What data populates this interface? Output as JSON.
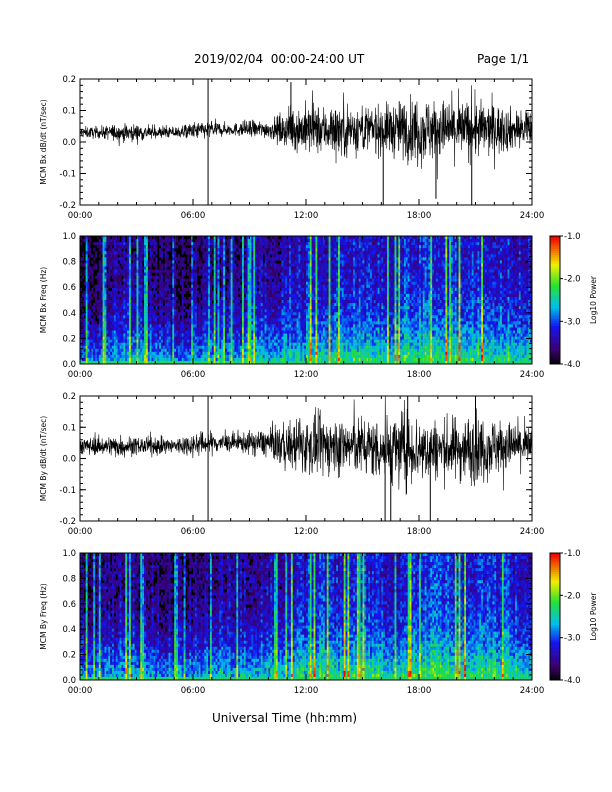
{
  "header": {
    "title": "2019/02/04  00:00-24:00 UT",
    "page": "Page 1/1"
  },
  "footer": {
    "xlabel": "Universal Time (hh:mm)"
  },
  "chart_data": [
    {
      "type": "line",
      "ylabel": "MCM Bx dB/dt (nT/sec)",
      "xlim": [
        0,
        24
      ],
      "ylim": [
        -0.2,
        0.2
      ],
      "xticks": [
        "00:00",
        "06:00",
        "12:00",
        "18:00",
        "24:00"
      ],
      "yticks": [
        "0.2",
        "0.1",
        "0.0",
        "-0.1",
        "-0.2"
      ],
      "series": [
        {
          "x": [
            0,
            1,
            2,
            3,
            4,
            5,
            6,
            7,
            8,
            9,
            10,
            11,
            12,
            13,
            14,
            15,
            16,
            17,
            18,
            19,
            20,
            21,
            22,
            23,
            24
          ],
          "center": [
            0.03,
            0.03,
            0.03,
            0.03,
            0.03,
            0.03,
            0.035,
            0.04,
            0.04,
            0.04,
            0.04,
            0.04,
            0.04,
            0.04,
            0.04,
            0.04,
            0.04,
            0.04,
            0.04,
            0.04,
            0.04,
            0.04,
            0.04,
            0.04,
            0.04
          ],
          "envelope": [
            0.02,
            0.02,
            0.03,
            0.03,
            0.02,
            0.02,
            0.03,
            0.03,
            0.02,
            0.03,
            0.03,
            0.06,
            0.09,
            0.08,
            0.1,
            0.08,
            0.08,
            0.1,
            0.12,
            0.1,
            0.1,
            0.1,
            0.09,
            0.07,
            0.06
          ]
        }
      ],
      "spikes": [
        {
          "x": 6.8,
          "y": 0.2
        },
        {
          "x": 6.8,
          "y": -0.2
        },
        {
          "x": 16.1,
          "y": -0.2
        },
        {
          "x": 20.8,
          "y": -0.2
        },
        {
          "x": 11.2,
          "y": 0.19
        },
        {
          "x": 18.9,
          "y": -0.18
        }
      ]
    },
    {
      "type": "heatmap",
      "ylabel": "MCM Bx Freq (Hz)",
      "xlim": [
        0,
        24
      ],
      "ylim": [
        0,
        1
      ],
      "xticks": [
        "00:00",
        "06:00",
        "12:00",
        "18:00",
        "24:00"
      ],
      "yticks": [
        "1.0",
        "0.8",
        "0.6",
        "0.4",
        "0.2",
        "0.0"
      ],
      "colorbar": {
        "label": "Log10 Power",
        "range": [
          -4,
          -1
        ],
        "ticks": [
          "-1.0",
          "-2.0",
          "-3.0",
          "-4.0"
        ]
      },
      "hour_activity": [
        0.45,
        0.55,
        0.6,
        0.55,
        0.45,
        0.45,
        0.5,
        0.55,
        0.55,
        0.6,
        0.62,
        0.68,
        0.75,
        0.7,
        0.75,
        0.72,
        0.7,
        0.78,
        0.82,
        0.8,
        0.78,
        0.78,
        0.75,
        0.7
      ]
    },
    {
      "type": "line",
      "ylabel": "MCM By dB/dt (nT/sec)",
      "xlim": [
        0,
        24
      ],
      "ylim": [
        -0.2,
        0.2
      ],
      "xticks": [
        "00:00",
        "06:00",
        "12:00",
        "18:00",
        "24:00"
      ],
      "yticks": [
        "0.2",
        "0.1",
        "0.0",
        "-0.1",
        "-0.2"
      ],
      "series": [
        {
          "x": [
            0,
            1,
            2,
            3,
            4,
            5,
            6,
            7,
            8,
            9,
            10,
            11,
            12,
            13,
            14,
            15,
            16,
            17,
            18,
            19,
            20,
            21,
            22,
            23,
            24
          ],
          "center": [
            0.04,
            0.04,
            0.04,
            0.04,
            0.04,
            0.04,
            0.045,
            0.05,
            0.05,
            0.05,
            0.05,
            0.04,
            0.04,
            0.04,
            0.04,
            0.04,
            0.03,
            0.03,
            0.03,
            0.03,
            0.03,
            0.03,
            0.04,
            0.04,
            0.04
          ],
          "envelope": [
            0.03,
            0.03,
            0.04,
            0.03,
            0.03,
            0.03,
            0.04,
            0.04,
            0.03,
            0.04,
            0.05,
            0.08,
            0.1,
            0.1,
            0.1,
            0.1,
            0.11,
            0.13,
            0.12,
            0.1,
            0.11,
            0.12,
            0.1,
            0.08,
            0.07
          ]
        }
      ],
      "spikes": [
        {
          "x": 6.8,
          "y": 0.2
        },
        {
          "x": 6.8,
          "y": -0.2
        },
        {
          "x": 16.2,
          "y": -0.2
        },
        {
          "x": 16.5,
          "y": -0.2
        },
        {
          "x": 18.6,
          "y": -0.2
        },
        {
          "x": 21.0,
          "y": 0.2
        },
        {
          "x": 17.4,
          "y": 0.2
        }
      ]
    },
    {
      "type": "heatmap",
      "ylabel": "MCM By Freq (Hz)",
      "xlim": [
        0,
        24
      ],
      "ylim": [
        0,
        1
      ],
      "xticks": [
        "00:00",
        "06:00",
        "12:00",
        "18:00",
        "24:00"
      ],
      "yticks": [
        "1.0",
        "0.8",
        "0.6",
        "0.4",
        "0.2",
        "0.0"
      ],
      "colorbar": {
        "label": "Log10 Power",
        "range": [
          -4,
          -1
        ],
        "ticks": [
          "-1.0",
          "-2.0",
          "-3.0",
          "-4.0"
        ]
      },
      "hour_activity": [
        0.5,
        0.55,
        0.6,
        0.55,
        0.5,
        0.5,
        0.55,
        0.6,
        0.6,
        0.62,
        0.65,
        0.7,
        0.78,
        0.72,
        0.78,
        0.75,
        0.72,
        0.8,
        0.84,
        0.82,
        0.8,
        0.8,
        0.78,
        0.72
      ]
    }
  ]
}
